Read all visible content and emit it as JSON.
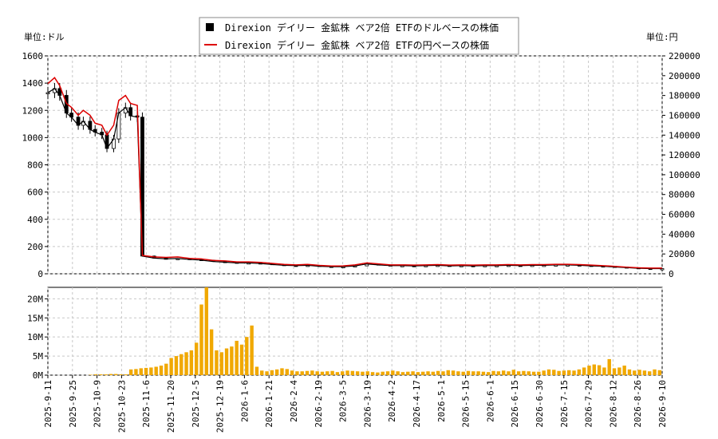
{
  "chart_data": [
    {
      "type": "candlestick",
      "legend": [
        {
          "label": "Direxion デイリー 金鉱株 ベア2倍 ETFのドルベースの株価",
          "color": "#000000",
          "marker": "square"
        },
        {
          "label": "Direxion デイリー 金鉱株 ベア2倍 ETFの円ベースの株価",
          "color": "#dd0000",
          "marker": "line"
        }
      ],
      "legend_position": "top-center",
      "left_unit_label": "単位:ドル",
      "right_unit_label": "単位:円",
      "ylim_left": [
        0,
        1600
      ],
      "yticks_left": [
        "0",
        "200",
        "400",
        "600",
        "800",
        "1000",
        "1200",
        "1400",
        "1600"
      ],
      "ylim_right": [
        0,
        220000
      ],
      "yticks_right": [
        "0",
        "20000",
        "40000",
        "60000",
        "80000",
        "100000",
        "120000",
        "140000",
        "160000",
        "180000",
        "200000",
        "220000"
      ],
      "grid": true,
      "x": [
        "2025-09-11",
        "2025-09-15",
        "2025-09-18",
        "2025-09-22",
        "2025-09-25",
        "2025-09-29",
        "2025-10-02",
        "2025-10-06",
        "2025-10-09",
        "2025-10-13",
        "2025-10-16",
        "2025-10-20",
        "2025-10-23",
        "2025-10-27",
        "2025-10-30",
        "2025-11-03",
        "2025-11-06",
        "2025-11-13",
        "2025-11-20",
        "2025-11-27",
        "2025-12-04",
        "2025-12-11",
        "2025-12-18",
        "2025-12-25",
        "2026-01-01",
        "2026-01-08",
        "2026-01-15",
        "2026-01-22",
        "2026-01-29",
        "2026-02-05",
        "2026-02-12",
        "2026-02-19",
        "2026-02-26",
        "2026-03-05",
        "2026-03-12",
        "2026-03-19",
        "2026-03-26",
        "2026-04-02",
        "2026-04-09",
        "2026-04-16",
        "2026-04-23",
        "2026-04-30",
        "2026-05-07",
        "2026-05-14",
        "2026-05-21",
        "2026-05-28",
        "2026-06-04",
        "2026-06-11",
        "2026-06-18",
        "2026-06-25",
        "2026-07-02",
        "2026-07-09",
        "2026-07-16",
        "2026-07-23",
        "2026-07-30",
        "2026-08-06",
        "2026-08-13",
        "2026-08-20",
        "2026-08-27",
        "2026-09-03",
        "2026-09-10"
      ],
      "usd_close": [
        1330,
        1360,
        1310,
        1180,
        1150,
        1090,
        1120,
        1060,
        1040,
        1020,
        920,
        990,
        1180,
        1220,
        1160,
        1150,
        130,
        115,
        110,
        112,
        105,
        100,
        90,
        85,
        80,
        80,
        75,
        68,
        62,
        60,
        62,
        55,
        52,
        52,
        58,
        72,
        65,
        60,
        60,
        58,
        60,
        62,
        58,
        60,
        58,
        60,
        60,
        62,
        60,
        62,
        62,
        65,
        65,
        62,
        58,
        55,
        50,
        45,
        40,
        38,
        38
      ],
      "jpy_close": [
        192000,
        198000,
        190000,
        172000,
        168000,
        160000,
        165000,
        160000,
        152000,
        150000,
        140000,
        150000,
        175000,
        180000,
        172000,
        170000,
        18500,
        17000,
        16500,
        17000,
        15500,
        15000,
        13500,
        13000,
        12000,
        12000,
        11500,
        10500,
        9500,
        9000,
        9500,
        8500,
        7900,
        8000,
        9000,
        11000,
        10000,
        9000,
        9000,
        8800,
        9000,
        9300,
        8800,
        9000,
        8800,
        9000,
        9000,
        9300,
        9000,
        9300,
        9300,
        9600,
        9600,
        9300,
        8800,
        8200,
        7500,
        6700,
        6000,
        5700,
        5700
      ]
    },
    {
      "type": "bar",
      "series_name": "volume",
      "color": "#f0a800",
      "ylim": [
        0,
        23000000
      ],
      "yticks": [
        "0M",
        "5M",
        "10M",
        "15M",
        "20M"
      ],
      "xtick_labels": [
        "2025-9-11",
        "2025-9-25",
        "2025-10-9",
        "2025-10-23",
        "2025-11-6",
        "2025-11-20",
        "2025-12-5",
        "2025-12-19",
        "2026-1-6",
        "2026-1-21",
        "2026-2-4",
        "2026-2-19",
        "2026-3-5",
        "2026-3-19",
        "2026-4-2",
        "2026-4-17",
        "2026-5-1",
        "2026-5-15",
        "2026-6-1",
        "2026-6-15",
        "2026-6-30",
        "2026-7-15",
        "2026-7-29",
        "2026-8-12",
        "2026-8-26",
        "2026-9-10"
      ],
      "volume": [
        0,
        0,
        0,
        0,
        0,
        0,
        0,
        0,
        0.1,
        0.2,
        0.2,
        0.2,
        0.3,
        0.3,
        0.2,
        0.2,
        1.5,
        1.6,
        1.8,
        1.9,
        2.0,
        2.2,
        2.5,
        3.0,
        4.5,
        5.0,
        5.5,
        6.0,
        6.5,
        8.5,
        18.5,
        23.0,
        12.0,
        6.5,
        6.0,
        7.0,
        7.5,
        9.0,
        8.0,
        10.0,
        13.0,
        2.2,
        1.2,
        1.0,
        1.3,
        1.5,
        1.8,
        1.6,
        1.2,
        1.0,
        1.0,
        1.1,
        1.2,
        1.0,
        0.9,
        1.0,
        1.1,
        0.8,
        1.0,
        1.2,
        1.1,
        1.0,
        0.9,
        1.0,
        0.8,
        0.7,
        0.9,
        1.0,
        1.2,
        1.0,
        0.8,
        0.9,
        1.0,
        0.8,
        0.9,
        1.0,
        0.9,
        1.1,
        1.0,
        1.3,
        1.2,
        1.0,
        0.9,
        1.1,
        1.0,
        1.0,
        0.9,
        0.8,
        1.1,
        1.0,
        1.2,
        1.0,
        1.4,
        1.0,
        1.1,
        1.0,
        0.9,
        0.9,
        1.2,
        1.5,
        1.4,
        1.1,
        1.2,
        1.3,
        1.2,
        1.5,
        2.0,
        2.5,
        2.8,
        2.6,
        2.0,
        4.2,
        1.8,
        2.0,
        2.5,
        1.5,
        1.2,
        1.4,
        1.2,
        1.0,
        1.5,
        1.3
      ]
    }
  ]
}
